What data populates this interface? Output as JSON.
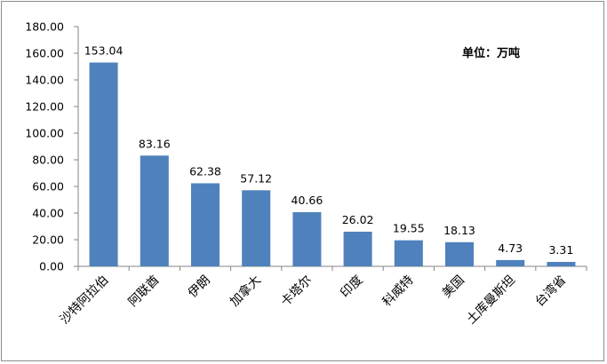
{
  "chart_data": {
    "type": "bar",
    "unit_note": "单位：万吨",
    "categories": [
      "沙特阿拉伯",
      "阿联酋",
      "伊朗",
      "加拿大",
      "卡塔尔",
      "印度",
      "科威特",
      "美国",
      "土库曼斯坦",
      "台湾省"
    ],
    "values": [
      153.04,
      83.16,
      62.38,
      57.12,
      40.66,
      26.02,
      19.55,
      18.13,
      4.73,
      3.31
    ],
    "value_labels": [
      "153.04",
      "83.16",
      "62.38",
      "57.12",
      "40.66",
      "26.02",
      "19.55",
      "18.13",
      "4.73",
      "3.31"
    ],
    "ylim": [
      0,
      180
    ],
    "yticks": [
      "0.00",
      "20.00",
      "40.00",
      "60.00",
      "80.00",
      "100.00",
      "120.00",
      "140.00",
      "160.00",
      "180.00"
    ],
    "bar_color": "#4f81bd",
    "grid": false,
    "legend": false
  }
}
